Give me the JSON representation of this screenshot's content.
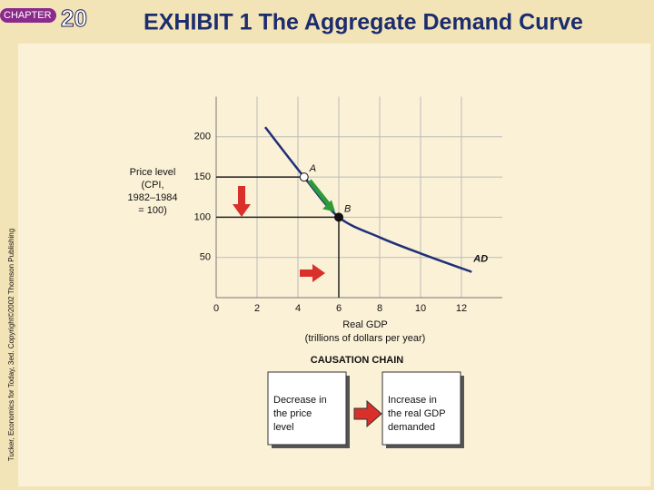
{
  "header": {
    "chapter": "CHAPTER",
    "number": "20",
    "title": "EXHIBIT 1 The Aggregate Demand Curve",
    "credit": "Tucker, Economics for Today, 3ed. Copyright©2002 Thomson Publishing"
  },
  "chart_data": {
    "type": "line",
    "ylabel": [
      "Price level",
      "(CPI,",
      "1982–1984",
      "= 100)"
    ],
    "xlabel": [
      "Real GDP",
      "(trillions of dollars per year)"
    ],
    "x": [
      2.4,
      4.3,
      6,
      8,
      10,
      12.5
    ],
    "series": [
      {
        "name": "AD",
        "color": "#1f2f7a",
        "values": [
          212,
          150,
          100,
          75,
          55,
          32
        ]
      }
    ],
    "points": [
      {
        "label": "A",
        "x": 4.3,
        "y": 150
      },
      {
        "label": "B",
        "x": 6,
        "y": 100
      }
    ],
    "xlim": [
      0,
      14
    ],
    "ylim": [
      0,
      250
    ],
    "xticks": [
      0,
      2,
      4,
      6,
      8,
      10,
      12
    ],
    "yticks": [
      50,
      100,
      150,
      200
    ],
    "grid": true
  },
  "causation": {
    "title": "CAUSATION CHAIN",
    "boxes": [
      [
        "Decrease in",
        "the price",
        "level"
      ],
      [
        "Increase in",
        "the real GDP",
        "demanded"
      ]
    ]
  }
}
